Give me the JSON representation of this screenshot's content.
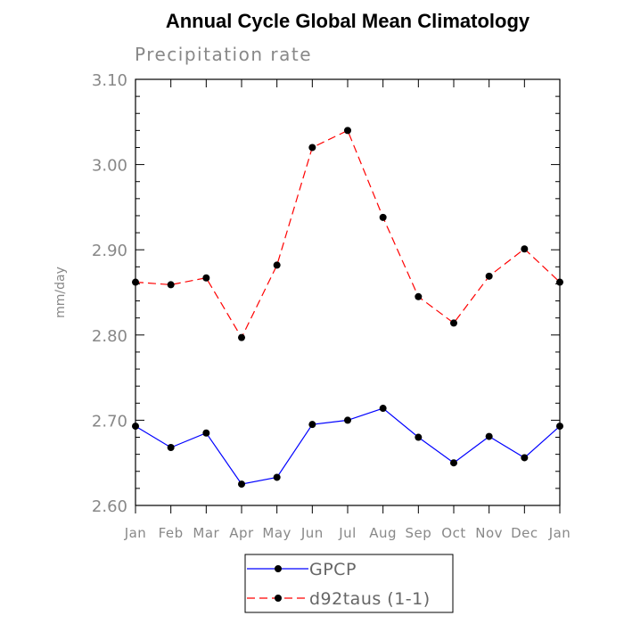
{
  "chart_data": {
    "type": "line",
    "title": "Annual Cycle Global Mean Climatology",
    "subtitle": "Precipitation rate",
    "xlabel": "",
    "ylabel": "mm/day",
    "categories": [
      "Jan",
      "Feb",
      "Mar",
      "Apr",
      "May",
      "Jun",
      "Jul",
      "Aug",
      "Sep",
      "Oct",
      "Nov",
      "Dec",
      "Jan"
    ],
    "ylim": [
      2.6,
      3.1
    ],
    "y_ticks": [
      "2.60",
      "2.70",
      "2.80",
      "2.90",
      "3.00",
      "3.10"
    ],
    "grid": false,
    "legend_position": "bottom-center",
    "series": [
      {
        "name": "GPCP",
        "color": "#0000ff",
        "line_style": "solid",
        "marker": "circle",
        "values": [
          2.693,
          2.668,
          2.685,
          2.625,
          2.633,
          2.695,
          2.7,
          2.714,
          2.68,
          2.65,
          2.681,
          2.656,
          2.693
        ]
      },
      {
        "name": "d92taus (1-1)",
        "color": "#ff0000",
        "line_style": "dashed",
        "marker": "circle",
        "values": [
          2.862,
          2.859,
          2.867,
          2.797,
          2.882,
          3.02,
          3.04,
          2.938,
          2.845,
          2.814,
          2.869,
          2.901,
          2.862
        ]
      }
    ]
  }
}
